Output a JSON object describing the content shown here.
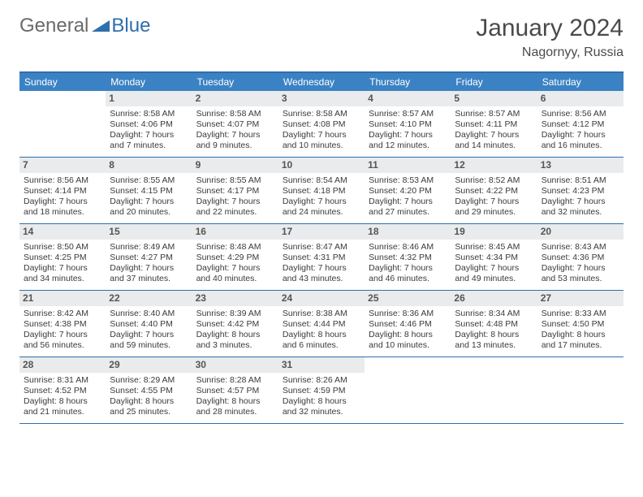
{
  "logo": {
    "text1": "General",
    "text2": "Blue"
  },
  "title": "January 2024",
  "location": "Nagornyy, Russia",
  "colors": {
    "header_bg": "#3b82c4",
    "header_text": "#ffffff",
    "border": "#2f6fab",
    "daynum_bg": "#e9ebec",
    "text": "#3a3a3a",
    "logo_gray": "#6a6a6a",
    "logo_blue": "#2f6fab"
  },
  "day_headers": [
    "Sunday",
    "Monday",
    "Tuesday",
    "Wednesday",
    "Thursday",
    "Friday",
    "Saturday"
  ],
  "leading_blanks": 1,
  "days": [
    {
      "n": 1,
      "sunrise": "8:58 AM",
      "sunset": "4:06 PM",
      "daylight": "7 hours and 7 minutes."
    },
    {
      "n": 2,
      "sunrise": "8:58 AM",
      "sunset": "4:07 PM",
      "daylight": "7 hours and 9 minutes."
    },
    {
      "n": 3,
      "sunrise": "8:58 AM",
      "sunset": "4:08 PM",
      "daylight": "7 hours and 10 minutes."
    },
    {
      "n": 4,
      "sunrise": "8:57 AM",
      "sunset": "4:10 PM",
      "daylight": "7 hours and 12 minutes."
    },
    {
      "n": 5,
      "sunrise": "8:57 AM",
      "sunset": "4:11 PM",
      "daylight": "7 hours and 14 minutes."
    },
    {
      "n": 6,
      "sunrise": "8:56 AM",
      "sunset": "4:12 PM",
      "daylight": "7 hours and 16 minutes."
    },
    {
      "n": 7,
      "sunrise": "8:56 AM",
      "sunset": "4:14 PM",
      "daylight": "7 hours and 18 minutes."
    },
    {
      "n": 8,
      "sunrise": "8:55 AM",
      "sunset": "4:15 PM",
      "daylight": "7 hours and 20 minutes."
    },
    {
      "n": 9,
      "sunrise": "8:55 AM",
      "sunset": "4:17 PM",
      "daylight": "7 hours and 22 minutes."
    },
    {
      "n": 10,
      "sunrise": "8:54 AM",
      "sunset": "4:18 PM",
      "daylight": "7 hours and 24 minutes."
    },
    {
      "n": 11,
      "sunrise": "8:53 AM",
      "sunset": "4:20 PM",
      "daylight": "7 hours and 27 minutes."
    },
    {
      "n": 12,
      "sunrise": "8:52 AM",
      "sunset": "4:22 PM",
      "daylight": "7 hours and 29 minutes."
    },
    {
      "n": 13,
      "sunrise": "8:51 AM",
      "sunset": "4:23 PM",
      "daylight": "7 hours and 32 minutes."
    },
    {
      "n": 14,
      "sunrise": "8:50 AM",
      "sunset": "4:25 PM",
      "daylight": "7 hours and 34 minutes."
    },
    {
      "n": 15,
      "sunrise": "8:49 AM",
      "sunset": "4:27 PM",
      "daylight": "7 hours and 37 minutes."
    },
    {
      "n": 16,
      "sunrise": "8:48 AM",
      "sunset": "4:29 PM",
      "daylight": "7 hours and 40 minutes."
    },
    {
      "n": 17,
      "sunrise": "8:47 AM",
      "sunset": "4:31 PM",
      "daylight": "7 hours and 43 minutes."
    },
    {
      "n": 18,
      "sunrise": "8:46 AM",
      "sunset": "4:32 PM",
      "daylight": "7 hours and 46 minutes."
    },
    {
      "n": 19,
      "sunrise": "8:45 AM",
      "sunset": "4:34 PM",
      "daylight": "7 hours and 49 minutes."
    },
    {
      "n": 20,
      "sunrise": "8:43 AM",
      "sunset": "4:36 PM",
      "daylight": "7 hours and 53 minutes."
    },
    {
      "n": 21,
      "sunrise": "8:42 AM",
      "sunset": "4:38 PM",
      "daylight": "7 hours and 56 minutes."
    },
    {
      "n": 22,
      "sunrise": "8:40 AM",
      "sunset": "4:40 PM",
      "daylight": "7 hours and 59 minutes."
    },
    {
      "n": 23,
      "sunrise": "8:39 AM",
      "sunset": "4:42 PM",
      "daylight": "8 hours and 3 minutes."
    },
    {
      "n": 24,
      "sunrise": "8:38 AM",
      "sunset": "4:44 PM",
      "daylight": "8 hours and 6 minutes."
    },
    {
      "n": 25,
      "sunrise": "8:36 AM",
      "sunset": "4:46 PM",
      "daylight": "8 hours and 10 minutes."
    },
    {
      "n": 26,
      "sunrise": "8:34 AM",
      "sunset": "4:48 PM",
      "daylight": "8 hours and 13 minutes."
    },
    {
      "n": 27,
      "sunrise": "8:33 AM",
      "sunset": "4:50 PM",
      "daylight": "8 hours and 17 minutes."
    },
    {
      "n": 28,
      "sunrise": "8:31 AM",
      "sunset": "4:52 PM",
      "daylight": "8 hours and 21 minutes."
    },
    {
      "n": 29,
      "sunrise": "8:29 AM",
      "sunset": "4:55 PM",
      "daylight": "8 hours and 25 minutes."
    },
    {
      "n": 30,
      "sunrise": "8:28 AM",
      "sunset": "4:57 PM",
      "daylight": "8 hours and 28 minutes."
    },
    {
      "n": 31,
      "sunrise": "8:26 AM",
      "sunset": "4:59 PM",
      "daylight": "8 hours and 32 minutes."
    }
  ],
  "labels": {
    "sunrise": "Sunrise:",
    "sunset": "Sunset:",
    "daylight": "Daylight:"
  }
}
